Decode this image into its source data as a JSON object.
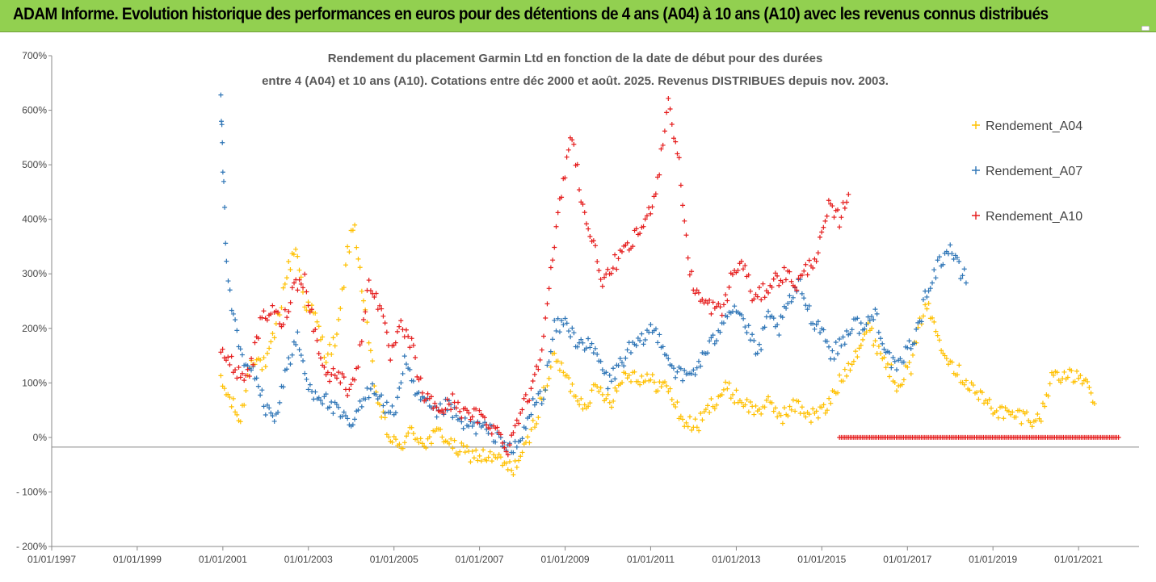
{
  "banner": {
    "title": "ADAM Informe. Evolution historique des performances en euros pour des détentions de 4 ans (A04) à 10 ans (A10) avec les revenus connus distribués"
  },
  "colors": {
    "banner": "#92d050",
    "A04": "#ffc000",
    "A07": "#2e75b6",
    "A10": "#e51c1c"
  },
  "chart_data": {
    "type": "scatter",
    "title": "Rendement du placement Garmin Ltd en fonction de la date de début pour des durées",
    "subtitle": "entre 4 (A04) et 10 ans (A10). Cotations entre déc 2000 et août. 2025. Revenus DISTRIBUES depuis nov. 2003.",
    "xlabel": "",
    "ylabel": "",
    "xlim": [
      "1997-01-01",
      "2022-06-01"
    ],
    "ylim": [
      -200,
      700
    ],
    "x_ticks": [
      "01/01/1997",
      "01/01/1999",
      "01/01/2001",
      "01/01/2003",
      "01/01/2005",
      "01/01/2007",
      "01/01/2009",
      "01/01/2011",
      "01/01/2013",
      "01/01/2015",
      "01/01/2017",
      "01/01/2019",
      "01/01/2021"
    ],
    "x_tick_dates": [
      "1997-01-01",
      "1999-01-01",
      "2001-01-01",
      "2003-01-01",
      "2005-01-01",
      "2007-01-01",
      "2009-01-01",
      "2011-01-01",
      "2013-01-01",
      "2015-01-01",
      "2017-01-01",
      "2019-01-01",
      "2021-01-01"
    ],
    "y_ticks": [
      "700%",
      "600%",
      "500%",
      "400%",
      "300%",
      "200%",
      "100%",
      "0%",
      "- 100%",
      "- 200%"
    ],
    "y_tick_values": [
      700,
      600,
      500,
      400,
      300,
      200,
      100,
      0,
      -100,
      -200
    ],
    "marker": "+",
    "grid": false,
    "legend_position": "right",
    "series": [
      {
        "name": "Rendement_A04",
        "points": [
          [
            "2000-12-15",
            100
          ],
          [
            "2001-03-01",
            70
          ],
          [
            "2001-06-01",
            30
          ],
          [
            "2001-09-01",
            150
          ],
          [
            "2002-01-01",
            130
          ],
          [
            "2002-04-01",
            200
          ],
          [
            "2002-07-01",
            300
          ],
          [
            "2002-09-15",
            350
          ],
          [
            "2002-12-01",
            250
          ],
          [
            "2003-03-01",
            220
          ],
          [
            "2003-06-01",
            150
          ],
          [
            "2003-09-01",
            180
          ],
          [
            "2003-12-01",
            340
          ],
          [
            "2004-02-01",
            390
          ],
          [
            "2004-05-01",
            220
          ],
          [
            "2004-08-01",
            80
          ],
          [
            "2004-11-01",
            10
          ],
          [
            "2005-02-01",
            -20
          ],
          [
            "2005-06-01",
            10
          ],
          [
            "2005-10-01",
            -10
          ],
          [
            "2006-02-01",
            10
          ],
          [
            "2006-06-01",
            -20
          ],
          [
            "2006-10-01",
            -30
          ],
          [
            "2007-02-01",
            -35
          ],
          [
            "2007-06-01",
            -40
          ],
          [
            "2007-10-01",
            -60
          ],
          [
            "2008-02-01",
            -20
          ],
          [
            "2008-06-01",
            60
          ],
          [
            "2008-10-01",
            150
          ],
          [
            "2009-02-01",
            100
          ],
          [
            "2009-06-01",
            60
          ],
          [
            "2009-10-01",
            90
          ],
          [
            "2010-02-01",
            70
          ],
          [
            "2010-06-01",
            120
          ],
          [
            "2010-10-01",
            110
          ],
          [
            "2011-02-01",
            100
          ],
          [
            "2011-06-01",
            90
          ],
          [
            "2011-10-01",
            30
          ],
          [
            "2012-02-01",
            20
          ],
          [
            "2012-06-01",
            60
          ],
          [
            "2012-10-01",
            90
          ],
          [
            "2013-02-01",
            70
          ],
          [
            "2013-06-01",
            50
          ],
          [
            "2013-10-01",
            60
          ],
          [
            "2014-02-01",
            40
          ],
          [
            "2014-06-01",
            60
          ],
          [
            "2014-10-01",
            40
          ],
          [
            "2015-02-01",
            50
          ],
          [
            "2015-06-01",
            100
          ],
          [
            "2015-10-01",
            150
          ],
          [
            "2016-02-01",
            200
          ],
          [
            "2016-06-01",
            150
          ],
          [
            "2016-10-01",
            100
          ],
          [
            "2017-02-01",
            130
          ],
          [
            "2017-06-01",
            250
          ],
          [
            "2017-10-01",
            180
          ],
          [
            "2018-02-01",
            130
          ],
          [
            "2018-06-01",
            100
          ],
          [
            "2018-10-01",
            70
          ],
          [
            "2019-02-01",
            50
          ],
          [
            "2019-06-01",
            40
          ],
          [
            "2019-10-01",
            40
          ],
          [
            "2020-02-01",
            30
          ],
          [
            "2020-06-01",
            120
          ],
          [
            "2020-10-01",
            110
          ],
          [
            "2021-02-01",
            110
          ],
          [
            "2021-06-01",
            55
          ]
        ]
      },
      {
        "name": "Rendement_A07",
        "points": [
          [
            "2000-12-15",
            620
          ],
          [
            "2001-01-01",
            500
          ],
          [
            "2001-02-01",
            320
          ],
          [
            "2001-04-01",
            220
          ],
          [
            "2001-07-01",
            130
          ],
          [
            "2001-10-01",
            120
          ],
          [
            "2002-01-01",
            50
          ],
          [
            "2002-04-01",
            40
          ],
          [
            "2002-07-01",
            130
          ],
          [
            "2002-10-01",
            180
          ],
          [
            "2003-01-01",
            90
          ],
          [
            "2003-04-01",
            80
          ],
          [
            "2003-07-01",
            60
          ],
          [
            "2003-10-01",
            40
          ],
          [
            "2004-01-01",
            20
          ],
          [
            "2004-04-01",
            60
          ],
          [
            "2004-07-01",
            100
          ],
          [
            "2004-10-01",
            60
          ],
          [
            "2005-01-01",
            40
          ],
          [
            "2005-04-01",
            140
          ],
          [
            "2005-07-01",
            80
          ],
          [
            "2005-10-01",
            60
          ],
          [
            "2006-01-01",
            40
          ],
          [
            "2006-04-01",
            60
          ],
          [
            "2006-07-01",
            30
          ],
          [
            "2006-10-01",
            20
          ],
          [
            "2007-01-01",
            20
          ],
          [
            "2007-04-01",
            10
          ],
          [
            "2007-07-01",
            0
          ],
          [
            "2007-10-01",
            -30
          ],
          [
            "2008-01-01",
            0
          ],
          [
            "2008-04-01",
            60
          ],
          [
            "2008-07-01",
            80
          ],
          [
            "2008-10-01",
            200
          ],
          [
            "2009-01-01",
            210
          ],
          [
            "2009-04-01",
            180
          ],
          [
            "2009-07-01",
            170
          ],
          [
            "2009-10-01",
            150
          ],
          [
            "2010-01-01",
            100
          ],
          [
            "2010-04-01",
            130
          ],
          [
            "2010-07-01",
            160
          ],
          [
            "2010-10-01",
            170
          ],
          [
            "2011-01-01",
            200
          ],
          [
            "2011-04-01",
            180
          ],
          [
            "2011-07-01",
            130
          ],
          [
            "2011-10-01",
            110
          ],
          [
            "2012-01-01",
            120
          ],
          [
            "2012-04-01",
            150
          ],
          [
            "2012-07-01",
            180
          ],
          [
            "2012-10-01",
            230
          ],
          [
            "2013-01-01",
            240
          ],
          [
            "2013-04-01",
            200
          ],
          [
            "2013-07-01",
            150
          ],
          [
            "2013-10-01",
            220
          ],
          [
            "2014-01-01",
            200
          ],
          [
            "2014-04-01",
            250
          ],
          [
            "2014-07-01",
            280
          ],
          [
            "2014-10-01",
            220
          ],
          [
            "2015-01-01",
            200
          ],
          [
            "2015-04-01",
            150
          ],
          [
            "2015-07-01",
            180
          ],
          [
            "2015-10-01",
            210
          ],
          [
            "2016-01-01",
            200
          ],
          [
            "2016-04-01",
            230
          ],
          [
            "2016-07-01",
            160
          ],
          [
            "2016-10-01",
            120
          ],
          [
            "2017-01-01",
            160
          ],
          [
            "2017-04-01",
            200
          ],
          [
            "2017-07-01",
            280
          ],
          [
            "2017-10-01",
            320
          ],
          [
            "2018-01-01",
            350
          ],
          [
            "2018-04-01",
            300
          ],
          [
            "2018-06-01",
            290
          ]
        ]
      },
      {
        "name": "Rendement_A10",
        "points": [
          [
            "2000-12-15",
            160
          ],
          [
            "2001-03-01",
            140
          ],
          [
            "2001-06-01",
            110
          ],
          [
            "2001-09-01",
            130
          ],
          [
            "2001-12-01",
            220
          ],
          [
            "2002-03-01",
            230
          ],
          [
            "2002-06-01",
            210
          ],
          [
            "2002-09-01",
            280
          ],
          [
            "2002-12-01",
            290
          ],
          [
            "2003-03-01",
            190
          ],
          [
            "2003-06-01",
            110
          ],
          [
            "2003-09-01",
            120
          ],
          [
            "2003-12-01",
            90
          ],
          [
            "2004-03-01",
            130
          ],
          [
            "2004-06-01",
            290
          ],
          [
            "2004-09-01",
            240
          ],
          [
            "2004-12-01",
            150
          ],
          [
            "2005-03-01",
            200
          ],
          [
            "2005-06-01",
            170
          ],
          [
            "2005-09-01",
            80
          ],
          [
            "2005-12-01",
            60
          ],
          [
            "2006-03-01",
            50
          ],
          [
            "2006-06-01",
            70
          ],
          [
            "2006-09-01",
            40
          ],
          [
            "2006-12-01",
            40
          ],
          [
            "2007-03-01",
            30
          ],
          [
            "2007-06-01",
            10
          ],
          [
            "2007-09-01",
            -20
          ],
          [
            "2007-12-01",
            40
          ],
          [
            "2008-03-01",
            80
          ],
          [
            "2008-06-01",
            150
          ],
          [
            "2008-09-01",
            300
          ],
          [
            "2008-12-01",
            450
          ],
          [
            "2009-03-01",
            560
          ],
          [
            "2009-06-01",
            420
          ],
          [
            "2009-09-01",
            350
          ],
          [
            "2009-12-01",
            280
          ],
          [
            "2010-03-01",
            320
          ],
          [
            "2010-06-01",
            340
          ],
          [
            "2010-09-01",
            370
          ],
          [
            "2010-12-01",
            400
          ],
          [
            "2011-03-01",
            470
          ],
          [
            "2011-06-01",
            620
          ],
          [
            "2011-09-01",
            500
          ],
          [
            "2011-12-01",
            300
          ],
          [
            "2012-03-01",
            250
          ],
          [
            "2012-06-01",
            240
          ],
          [
            "2012-09-01",
            230
          ],
          [
            "2012-12-01",
            300
          ],
          [
            "2013-03-01",
            320
          ],
          [
            "2013-06-01",
            250
          ],
          [
            "2013-09-01",
            270
          ],
          [
            "2013-12-01",
            290
          ],
          [
            "2014-03-01",
            300
          ],
          [
            "2014-06-01",
            280
          ],
          [
            "2014-09-01",
            310
          ],
          [
            "2014-12-01",
            340
          ],
          [
            "2015-03-01",
            420
          ],
          [
            "2015-06-01",
            400
          ],
          [
            "2015-09-01",
            460
          ]
        ],
        "flat_segment": {
          "from": "2015-06-01",
          "to": "2022-06-01",
          "value": 0
        }
      }
    ]
  }
}
